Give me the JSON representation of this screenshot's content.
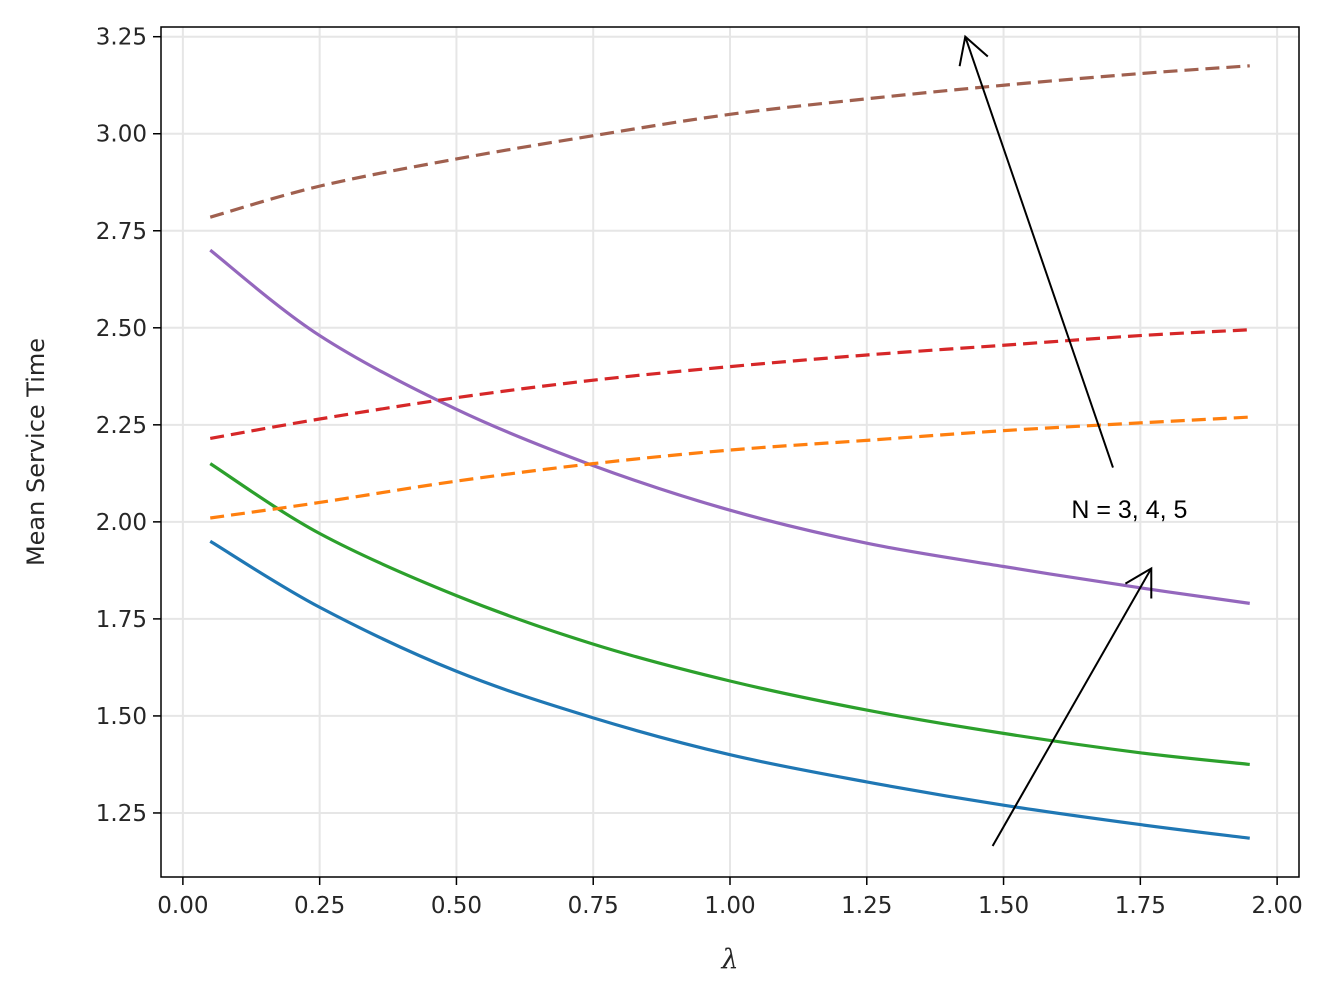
{
  "chart_data": {
    "type": "line",
    "title": "",
    "xlabel": "λ",
    "ylabel": "Mean Service Time",
    "xlim": [
      -0.04,
      2.04
    ],
    "ylim": [
      1.085,
      3.275
    ],
    "grid": true,
    "x_ticks": [
      "0.00",
      "0.25",
      "0.50",
      "0.75",
      "1.00",
      "1.25",
      "1.50",
      "1.75",
      "2.00"
    ],
    "y_ticks": [
      "1.25",
      "1.50",
      "1.75",
      "2.00",
      "2.25",
      "2.50",
      "2.75",
      "3.00",
      "3.25"
    ],
    "x": [
      0.05,
      0.25,
      0.5,
      0.75,
      1.0,
      1.25,
      1.5,
      1.75,
      1.95
    ],
    "series": [
      {
        "style": "solid",
        "color": "#1f77b4",
        "values": [
          1.95,
          1.78,
          1.615,
          1.495,
          1.4,
          1.33,
          1.27,
          1.22,
          1.185
        ]
      },
      {
        "style": "solid",
        "color": "#2ca02c",
        "values": [
          2.15,
          1.97,
          1.81,
          1.685,
          1.59,
          1.515,
          1.455,
          1.405,
          1.375
        ]
      },
      {
        "style": "solid",
        "color": "#9467bd",
        "values": [
          2.7,
          2.48,
          2.29,
          2.145,
          2.03,
          1.945,
          1.885,
          1.83,
          1.79
        ]
      },
      {
        "style": "dashed",
        "color": "#ff7f0e",
        "values": [
          2.01,
          2.05,
          2.105,
          2.15,
          2.185,
          2.21,
          2.235,
          2.255,
          2.27
        ]
      },
      {
        "style": "dashed",
        "color": "#d62728",
        "values": [
          2.215,
          2.265,
          2.32,
          2.365,
          2.4,
          2.43,
          2.455,
          2.48,
          2.495
        ]
      },
      {
        "style": "dashed",
        "color": "#a0604f",
        "values": [
          2.785,
          2.865,
          2.935,
          2.995,
          3.05,
          3.09,
          3.125,
          3.155,
          3.175
        ]
      }
    ],
    "annotations": [
      {
        "text": "N = 3, 4, 5",
        "at": [
          1.73,
          2.03
        ]
      },
      {
        "type": "arrow",
        "from": [
          1.7,
          2.14
        ],
        "to": [
          1.43,
          3.25
        ]
      },
      {
        "type": "arrow",
        "from": [
          1.48,
          1.165
        ],
        "to": [
          1.77,
          1.88
        ]
      }
    ]
  }
}
